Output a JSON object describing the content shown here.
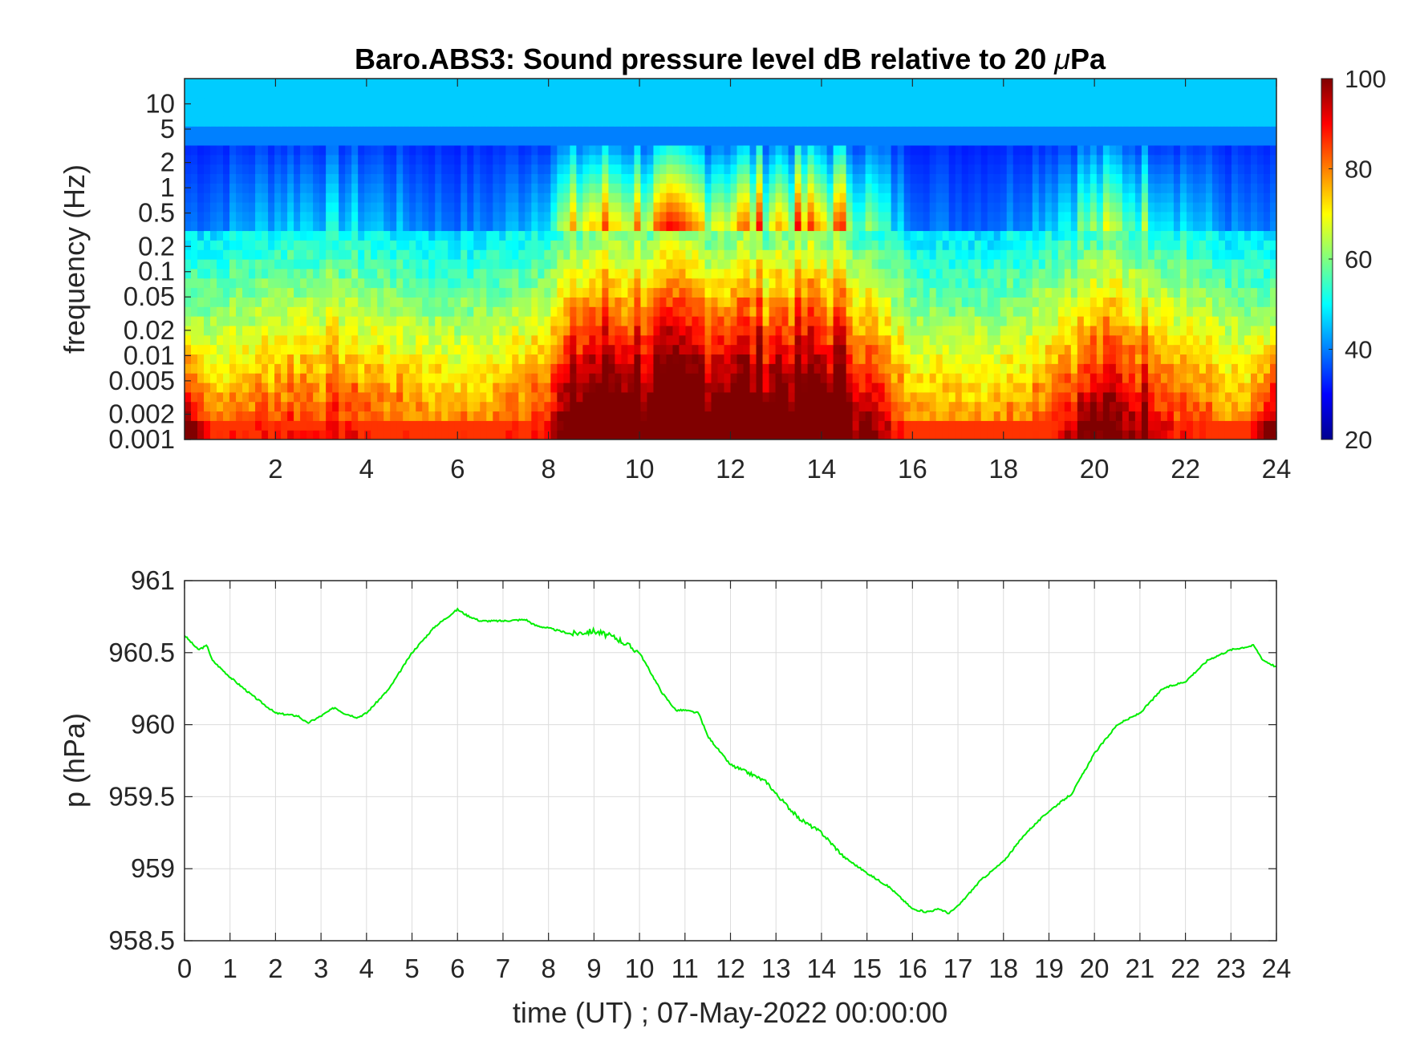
{
  "chart_data": [
    {
      "type": "heatmap",
      "title": "Baro.ABS3: Sound pressure level dB relative to 20 μPa",
      "title_main": "Baro.ABS3: Sound pressure level dB relative to 20 ",
      "title_mu": "μ",
      "title_unit": "Pa",
      "ylabel": "frequency (Hz)",
      "xlabel": "",
      "x_range": [
        0,
        24
      ],
      "y_scale": "log",
      "y_range": [
        0.001,
        20
      ],
      "x_ticks": [
        "2",
        "4",
        "6",
        "8",
        "10",
        "12",
        "14",
        "16",
        "18",
        "20",
        "22",
        "24"
      ],
      "y_ticks": [
        "10",
        "5",
        "2",
        "1",
        "0.5",
        "0.2",
        "0.1",
        "0.05",
        "0.02",
        "0.01",
        "0.005",
        "0.002",
        "0.001"
      ],
      "colormap": "jet",
      "colorbar": {
        "range": [
          20,
          100
        ],
        "ticks": [
          "100",
          "80",
          "60",
          "40",
          "20"
        ]
      },
      "high_activity_hours": [
        [
          8.5,
          16
        ],
        [
          19,
          21.5
        ]
      ],
      "background_level_db": 35
    },
    {
      "type": "line",
      "title": "",
      "xlabel": "time (UT) ; 07-May-2022 00:00:00",
      "ylabel": "p (hPa)",
      "xlim": [
        0,
        24
      ],
      "ylim": [
        958.5,
        961
      ],
      "grid": true,
      "x_ticks": [
        "0",
        "1",
        "2",
        "3",
        "4",
        "5",
        "6",
        "7",
        "8",
        "9",
        "10",
        "11",
        "12",
        "13",
        "14",
        "15",
        "16",
        "17",
        "18",
        "19",
        "20",
        "21",
        "22",
        "23",
        "24"
      ],
      "y_ticks": [
        "961",
        "960.5",
        "960",
        "959.5",
        "959",
        "958.5"
      ],
      "series": [
        {
          "color": "#00ee00",
          "x": [
            0,
            0.3,
            0.5,
            0.6,
            1,
            1.5,
            2,
            2.5,
            2.7,
            3,
            3.3,
            3.5,
            3.8,
            4,
            4.5,
            5,
            5.5,
            6,
            6.2,
            6.5,
            7,
            7.5,
            7.7,
            8,
            8.5,
            9,
            9.5,
            10,
            10.5,
            10.8,
            11,
            11.3,
            11.5,
            12,
            12.5,
            12.8,
            13,
            13.5,
            14,
            14.5,
            15,
            15.5,
            16,
            16.3,
            16.6,
            16.8,
            17,
            17.5,
            18,
            18.5,
            19,
            19.5,
            20,
            20.5,
            21,
            21.5,
            22,
            22.5,
            23,
            23.5,
            23.7,
            24
          ],
          "y": [
            960.62,
            960.52,
            960.55,
            960.45,
            960.33,
            960.2,
            960.08,
            960.06,
            960.01,
            960.06,
            960.12,
            960.08,
            960.05,
            960.08,
            960.25,
            960.5,
            960.68,
            960.8,
            960.76,
            960.72,
            960.72,
            960.73,
            960.69,
            960.67,
            960.63,
            960.65,
            960.6,
            960.5,
            960.22,
            960.1,
            960.1,
            960.08,
            959.92,
            959.72,
            959.65,
            959.6,
            959.52,
            959.35,
            959.25,
            959.08,
            958.97,
            958.87,
            958.72,
            958.7,
            958.72,
            958.69,
            958.74,
            958.92,
            959.05,
            959.25,
            959.4,
            959.52,
            959.8,
            960.0,
            960.08,
            960.25,
            960.3,
            960.45,
            960.52,
            960.55,
            960.45,
            960.4
          ]
        }
      ]
    }
  ]
}
